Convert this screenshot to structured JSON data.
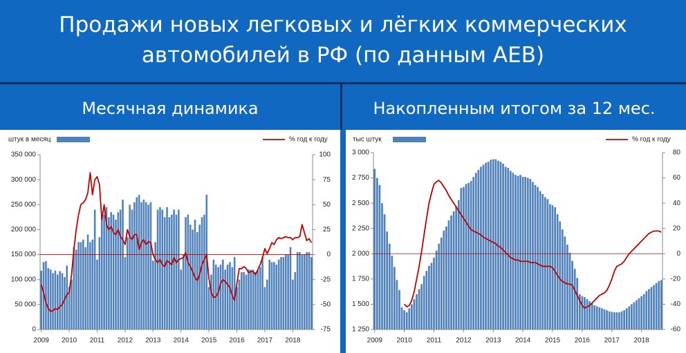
{
  "title": [
    "Продажи новых легковых и лёгких коммерческих",
    "автомобилей в РФ (по данным АЕВ)"
  ],
  "chart_data": [
    {
      "type": "combo",
      "title": "Месячная динамика",
      "categories": [
        "2009",
        null,
        null,
        null,
        null,
        null,
        null,
        null,
        null,
        null,
        null,
        null,
        "2010",
        null,
        null,
        null,
        null,
        null,
        null,
        null,
        null,
        null,
        null,
        null,
        "2011",
        null,
        null,
        null,
        null,
        null,
        null,
        null,
        null,
        null,
        null,
        null,
        "2012",
        null,
        null,
        null,
        null,
        null,
        null,
        null,
        null,
        null,
        null,
        null,
        "2013",
        null,
        null,
        null,
        null,
        null,
        null,
        null,
        null,
        null,
        null,
        null,
        "2014",
        null,
        null,
        null,
        null,
        null,
        null,
        null,
        null,
        null,
        null,
        null,
        "2015",
        null,
        null,
        null,
        null,
        null,
        null,
        null,
        null,
        null,
        null,
        null,
        "2016",
        null,
        null,
        null,
        null,
        null,
        null,
        null,
        null,
        null,
        null,
        null,
        "2017",
        null,
        null,
        null,
        null,
        null,
        null,
        null,
        null,
        null,
        null,
        null,
        "2018",
        null,
        null,
        null,
        null,
        null,
        null,
        null,
        null
      ],
      "series": [
        {
          "name": "штук в месяц",
          "color": "#4f81bd",
          "axis": "y",
          "values": [
            118000,
            135000,
            137000,
            123000,
            120000,
            113000,
            118000,
            110000,
            117000,
            113000,
            105000,
            128000,
            85000,
            100000,
            165000,
            160000,
            175000,
            175000,
            180000,
            165000,
            190000,
            175000,
            180000,
            240000,
            140000,
            185000,
            225000,
            230000,
            245000,
            225000,
            235000,
            230000,
            220000,
            235000,
            240000,
            260000,
            145000,
            185000,
            250000,
            240000,
            255000,
            265000,
            270000,
            255000,
            260000,
            255000,
            250000,
            255000,
            138000,
            175000,
            240000,
            245000,
            240000,
            225000,
            245000,
            225000,
            230000,
            240000,
            230000,
            240000,
            120000,
            150000,
            225000,
            230000,
            210000,
            200000,
            220000,
            195000,
            210000,
            225000,
            230000,
            270000,
            85000,
            110000,
            140000,
            130000,
            125000,
            130000,
            140000,
            120000,
            130000,
            135000,
            125000,
            145000,
            85000,
            100000,
            115000,
            115000,
            110000,
            120000,
            120000,
            120000,
            115000,
            120000,
            125000,
            145000,
            85000,
            100000,
            140000,
            135000,
            135000,
            130000,
            140000,
            145000,
            145000,
            150000,
            150000,
            165000,
            100000,
            115000,
            155000,
            155000,
            150000,
            150000,
            155000,
            155000,
            145000
          ]
        },
        {
          "name": "% год к году",
          "color": "#c00000",
          "axis": "y2",
          "values": [
            -30,
            -38,
            -48,
            -54,
            -57,
            -56,
            -54,
            -55,
            -52,
            -50,
            -45,
            -40,
            -38,
            -20,
            5,
            25,
            40,
            50,
            52,
            55,
            62,
            82,
            60,
            75,
            78,
            70,
            35,
            50,
            30,
            25,
            28,
            22,
            20,
            25,
            18,
            15,
            10,
            25,
            18,
            15,
            20,
            20,
            5,
            12,
            15,
            10,
            13,
            12,
            0,
            -5,
            -8,
            -5,
            -10,
            -12,
            -6,
            -8,
            -10,
            -3,
            -8,
            -5,
            -4,
            -3,
            2,
            -8,
            -12,
            -17,
            -23,
            -26,
            -20,
            -10,
            -5,
            0,
            -24,
            -38,
            -43,
            -42,
            -38,
            -29,
            -25,
            -27,
            -30,
            -33,
            -41,
            -46,
            -29,
            -14,
            -14,
            -12,
            -14,
            -18,
            -17,
            -17,
            -20,
            -15,
            -10,
            -3,
            6,
            1,
            6,
            12,
            10,
            15,
            17,
            16,
            17,
            18,
            17,
            17,
            15,
            17,
            17,
            18,
            30,
            22,
            14,
            16,
            12
          ]
        }
      ],
      "ylim": [
        0,
        350000
      ],
      "yticks": [
        0,
        {
          "value": 50000,
          "label": "50 000"
        },
        {
          "value": 100000,
          "label": "100 000"
        },
        {
          "value": 150000,
          "label": "150 000"
        },
        {
          "value": 200000,
          "label": "200 000"
        },
        {
          "value": 250000,
          "label": "250 000"
        },
        {
          "value": 300000,
          "label": "300 000"
        },
        {
          "value": 350000,
          "label": "350 000"
        }
      ],
      "y2lim": [
        -75,
        100
      ],
      "y2ticks": [
        -75,
        -50,
        -25,
        0,
        25,
        50,
        75,
        100
      ],
      "y2_refline": 0
    },
    {
      "type": "combo",
      "title": "Накопленным итогом за 12 мес.",
      "categories": [
        "2009",
        null,
        null,
        null,
        null,
        null,
        null,
        null,
        null,
        null,
        null,
        null,
        "2010",
        null,
        null,
        null,
        null,
        null,
        null,
        null,
        null,
        null,
        null,
        null,
        "2011",
        null,
        null,
        null,
        null,
        null,
        null,
        null,
        null,
        null,
        null,
        null,
        "2012",
        null,
        null,
        null,
        null,
        null,
        null,
        null,
        null,
        null,
        null,
        null,
        "2013",
        null,
        null,
        null,
        null,
        null,
        null,
        null,
        null,
        null,
        null,
        null,
        "2014",
        null,
        null,
        null,
        null,
        null,
        null,
        null,
        null,
        null,
        null,
        null,
        "2015",
        null,
        null,
        null,
        null,
        null,
        null,
        null,
        null,
        null,
        null,
        null,
        "2016",
        null,
        null,
        null,
        null,
        null,
        null,
        null,
        null,
        null,
        null,
        null,
        "2017",
        null,
        null,
        null,
        null,
        null,
        null,
        null,
        null,
        null,
        null,
        null,
        "2018",
        null,
        null,
        null,
        null,
        null,
        null,
        null,
        null
      ],
      "series": [
        {
          "name": "тыс штук",
          "color": "#4f81bd",
          "axis": "y",
          "values": [
            2840,
            2750,
            2680,
            2500,
            2390,
            2220,
            2100,
            1980,
            1870,
            1740,
            1640,
            1470,
            1440,
            1420,
            1460,
            1500,
            1550,
            1600,
            1650,
            1700,
            1780,
            1830,
            1880,
            1910,
            1960,
            2030,
            2100,
            2160,
            2230,
            2270,
            2330,
            2380,
            2420,
            2470,
            2530,
            2650,
            2660,
            2690,
            2700,
            2720,
            2760,
            2800,
            2830,
            2860,
            2880,
            2900,
            2910,
            2930,
            2935,
            2935,
            2920,
            2910,
            2890,
            2860,
            2850,
            2820,
            2800,
            2780,
            2770,
            2780,
            2760,
            2760,
            2750,
            2740,
            2710,
            2680,
            2660,
            2620,
            2590,
            2560,
            2540,
            2490,
            2480,
            2460,
            2390,
            2320,
            2240,
            2170,
            2090,
            2010,
            1930,
            1850,
            1760,
            1600,
            1580,
            1570,
            1550,
            1530,
            1510,
            1490,
            1480,
            1470,
            1460,
            1450,
            1440,
            1430,
            1425,
            1420,
            1420,
            1420,
            1430,
            1440,
            1460,
            1480,
            1500,
            1520,
            1540,
            1560,
            1580,
            1600,
            1630,
            1650,
            1670,
            1690,
            1710,
            1730,
            1740
          ]
        },
        {
          "name": "% год к году",
          "color": "#c00000",
          "axis": "y2",
          "values": [
            null,
            null,
            null,
            null,
            null,
            null,
            null,
            null,
            null,
            null,
            null,
            null,
            -40,
            -42,
            -41,
            -37,
            -30,
            -20,
            -10,
            2,
            15,
            28,
            40,
            48,
            55,
            57,
            58,
            56,
            53,
            50,
            46,
            43,
            40,
            37,
            34,
            31,
            28,
            25,
            22,
            19,
            18,
            17,
            16,
            15,
            13,
            12,
            11,
            10,
            9,
            8,
            6,
            5,
            3,
            1,
            -1,
            -3,
            -4,
            -5,
            -5,
            -6,
            -6,
            -6,
            -6,
            -7,
            -7,
            -7,
            -8,
            -9,
            -10,
            -10,
            -10,
            -10,
            -11,
            -14,
            -17,
            -20,
            -22,
            -23,
            -24,
            -24,
            -25,
            -29,
            -33,
            -37,
            -41,
            -43,
            -42,
            -41,
            -39,
            -37,
            -35,
            -33,
            -32,
            -31,
            -29,
            -25,
            -20,
            -14,
            -10,
            -9,
            -8,
            -6,
            -3,
            0,
            2,
            4,
            6,
            8,
            10,
            12,
            14,
            16,
            17,
            18,
            18,
            18,
            17
          ]
        }
      ],
      "ylim": [
        1250,
        3000
      ],
      "yticks": [
        {
          "value": 1250,
          "label": "1 250"
        },
        {
          "value": 1500,
          "label": "1 500"
        },
        {
          "value": 1750,
          "label": "1 750"
        },
        {
          "value": 2000,
          "label": "2 000"
        },
        {
          "value": 2250,
          "label": "2 250"
        },
        {
          "value": 2500,
          "label": "2 500"
        },
        {
          "value": 2750,
          "label": "2 750"
        },
        {
          "value": 3000,
          "label": "3 000"
        }
      ],
      "y2lim": [
        -60,
        80
      ],
      "y2ticks": [
        -60,
        -40,
        -20,
        0,
        20,
        40,
        60,
        80
      ],
      "y2_refline": 0
    }
  ]
}
